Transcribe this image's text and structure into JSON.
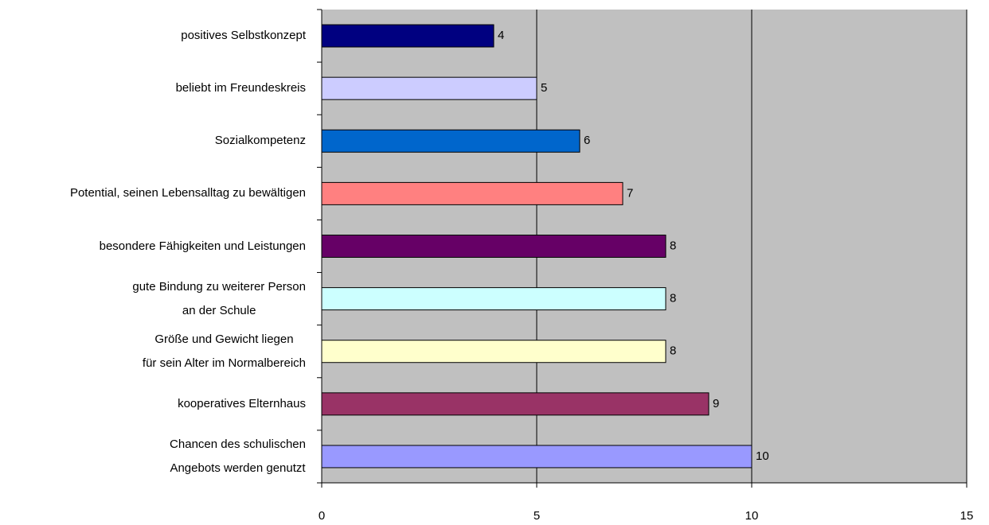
{
  "chart_data": {
    "type": "bar",
    "orientation": "horizontal",
    "categories": [
      "positives Selbstkonzept",
      "beliebt im Freundeskreis",
      "Sozialkompetenz",
      "Potential, seinen Lebensalltag zu bewältigen",
      "besondere Fähigkeiten und Leistungen",
      "gute Bindung zu weiterer Person\nan der Schule",
      "Größe und Gewicht liegen\nfür sein Alter im Normalbereich",
      "kooperatives Elternhaus",
      "Chancen des schulischen\nAngebots werden genutzt"
    ],
    "values": [
      4,
      5,
      6,
      7,
      8,
      8,
      8,
      9,
      10
    ],
    "colors": [
      "#000080",
      "#ccccff",
      "#0066cc",
      "#ff8080",
      "#660066",
      "#ccffff",
      "#ffffcc",
      "#993366",
      "#9999ff"
    ],
    "xlim": [
      0,
      15
    ],
    "xticks": [
      0,
      5,
      10,
      15
    ],
    "grid": true
  }
}
